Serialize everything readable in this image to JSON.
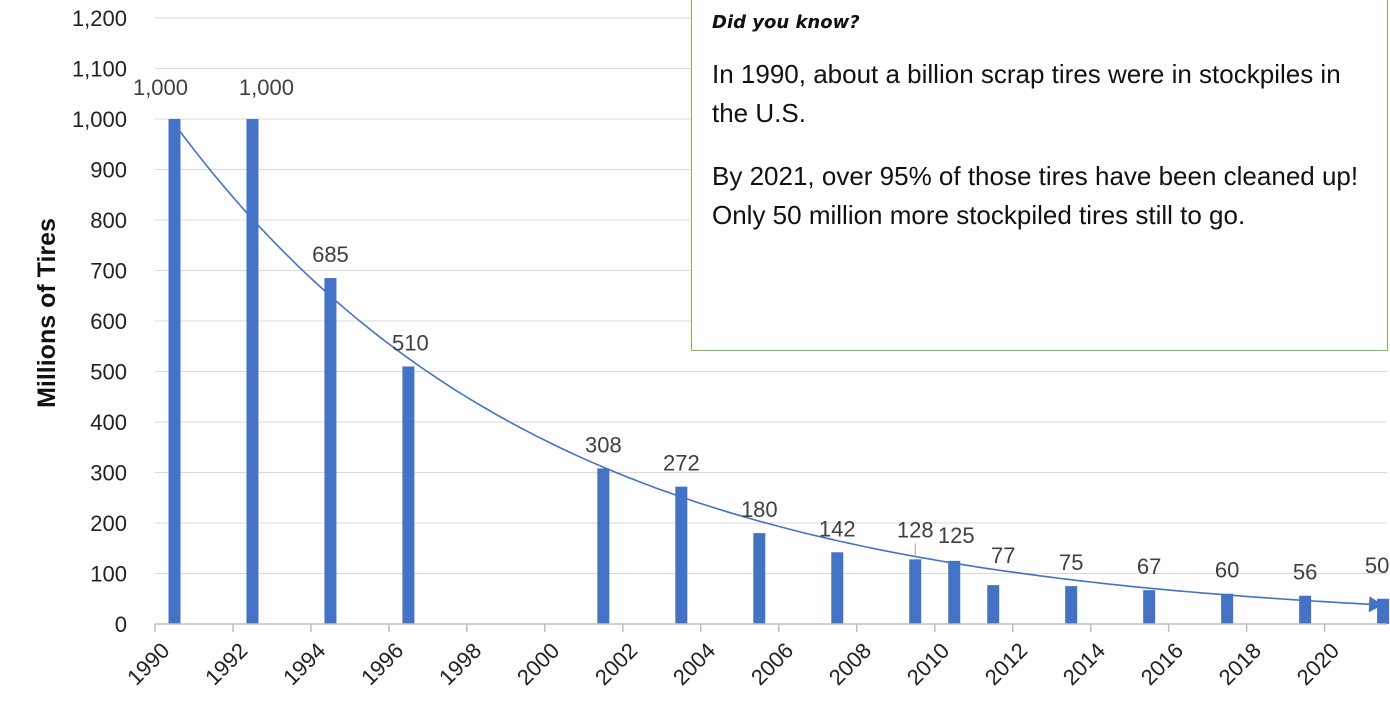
{
  "chart_data": {
    "type": "bar",
    "ylabel": "Millions of Tires",
    "xlabel": "",
    "title": "",
    "ylim": [
      0,
      1200
    ],
    "xlim": [
      1990,
      2021.6
    ],
    "y_ticks": [
      "0",
      "100",
      "200",
      "300",
      "400",
      "500",
      "600",
      "700",
      "800",
      "900",
      "1,000",
      "1,100",
      "1,200"
    ],
    "x_ticks": [
      "1990",
      "1992",
      "1994",
      "1996",
      "1998",
      "2000",
      "2002",
      "2004",
      "2006",
      "2008",
      "2010",
      "2012",
      "2014",
      "2016",
      "2018",
      "2020"
    ],
    "grid": "horizontal",
    "bar_color": "#4472c4",
    "points": [
      {
        "year": 1990.5,
        "value": 1000,
        "label": "1,000"
      },
      {
        "year": 1992.5,
        "value": 1000,
        "label": "1,000"
      },
      {
        "year": 1994.5,
        "value": 685,
        "label": "685"
      },
      {
        "year": 1996.5,
        "value": 510,
        "label": "510"
      },
      {
        "year": 2001.5,
        "value": 308,
        "label": "308"
      },
      {
        "year": 2003.5,
        "value": 272,
        "label": "272"
      },
      {
        "year": 2005.5,
        "value": 180,
        "label": "180"
      },
      {
        "year": 2007.5,
        "value": 142,
        "label": "142"
      },
      {
        "year": 2009.5,
        "value": 128,
        "label": "128"
      },
      {
        "year": 2010.5,
        "value": 125,
        "label": "125"
      },
      {
        "year": 2011.5,
        "value": 77,
        "label": "77"
      },
      {
        "year": 2013.5,
        "value": 75,
        "label": "75"
      },
      {
        "year": 2015.5,
        "value": 67,
        "label": "67"
      },
      {
        "year": 2017.5,
        "value": 60,
        "label": "60"
      },
      {
        "year": 2019.5,
        "value": 56,
        "label": "56"
      },
      {
        "year": 2021.5,
        "value": 50,
        "label": "50"
      }
    ],
    "trendline": {
      "type": "exponential",
      "color": "#4472c4"
    }
  },
  "callout": {
    "title": "Did you know?",
    "paragraph1": "In 1990, about a billion scrap tires were in stockpiles in the U.S.",
    "paragraph2": "By 2021, over 95% of those tires have been cleaned up!  Only 50 million more stockpiled tires still to go.",
    "border_color": "#7ac143"
  }
}
